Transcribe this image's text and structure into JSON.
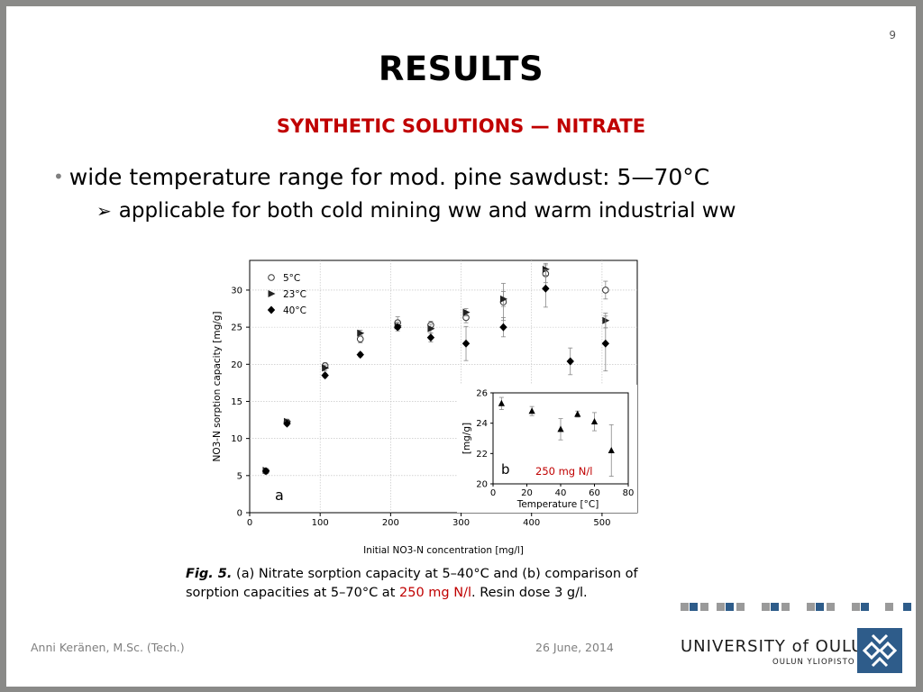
{
  "slide": {
    "page_number": "9",
    "title": "RESULTS",
    "subtitle": "SYNTHETIC SOLUTIONS — NITRATE",
    "bullets": [
      {
        "marker": "•",
        "text": "wide temperature range for mod. pine sawdust: 5—70°C"
      },
      {
        "marker": "➢",
        "text": "applicable for both cold mining ww and warm industrial ww"
      }
    ],
    "caption": {
      "fig_label": "Fig. 5.",
      "text_1": " (a) Nitrate sorption capacity at 5–40°C and (b) comparison of sorption capacities at 5–70°C at ",
      "highlight": "250 mg N/l",
      "text_2": ". Resin dose 3 g/l."
    },
    "footer": {
      "author": "Anni Keränen, M.Sc. (Tech.)",
      "date": "26 June, 2014",
      "university": "UNIVERSITY of OULU",
      "university_sub": "OULUN YLIOPISTO"
    },
    "colors": {
      "accent_red": "#c00000",
      "deco_blue": "#2e5c8a",
      "deco_gray": "#9a9a9a"
    }
  },
  "chart_data": [
    {
      "type": "scatter",
      "panel_label": "a",
      "xlabel": "Initial NO3-N  concentration [mg/l]",
      "ylabel": "NO3-N sorption capacity [mg/g]",
      "xlim": [
        0,
        550
      ],
      "ylim": [
        0,
        34
      ],
      "xticks": [
        0,
        100,
        200,
        300,
        400,
        500
      ],
      "yticks": [
        0,
        5,
        10,
        15,
        20,
        25,
        30
      ],
      "grid": true,
      "legend_position": "top-left",
      "series": [
        {
          "name": "5°C",
          "marker": "circle-open",
          "x": [
            23,
            53,
            107,
            157,
            210,
            257,
            307,
            360,
            420,
            505
          ],
          "y": [
            5.6,
            12.2,
            19.8,
            23.4,
            25.6,
            25.3,
            26.3,
            28.4,
            32.2,
            30.0
          ],
          "err": [
            0.3,
            0.3,
            0.4,
            0.5,
            0.8,
            0.5,
            0.7,
            2.5,
            1.2,
            1.2
          ]
        },
        {
          "name": "23°C",
          "marker": "triangle-right",
          "x": [
            23,
            53,
            107,
            157,
            210,
            257,
            307,
            360,
            420,
            505
          ],
          "y": [
            5.7,
            12.3,
            19.5,
            24.2,
            25.2,
            24.8,
            27.0,
            28.8,
            32.8,
            25.9
          ],
          "err": [
            0.3,
            0.3,
            0.4,
            0.4,
            0.5,
            0.6,
            0.5,
            1.0,
            0.8,
            1.0
          ]
        },
        {
          "name": "40°C",
          "marker": "diamond-filled",
          "x": [
            23,
            53,
            107,
            157,
            210,
            257,
            307,
            360,
            420,
            455,
            505
          ],
          "y": [
            5.6,
            12.0,
            18.5,
            21.3,
            25.0,
            23.6,
            22.8,
            25.0,
            30.2,
            20.4,
            22.8
          ],
          "err": [
            0.2,
            0.3,
            0.3,
            0.3,
            0.5,
            0.6,
            2.3,
            1.3,
            2.5,
            1.8,
            3.7
          ]
        }
      ]
    },
    {
      "type": "scatter",
      "panel_label": "b",
      "annotation": "250 mg N/l",
      "xlabel": "Temperature [°C]",
      "ylabel": "[mg/g]",
      "xlim": [
        0,
        80
      ],
      "ylim": [
        20,
        26
      ],
      "xticks": [
        0,
        20,
        40,
        60,
        80
      ],
      "yticks": [
        20,
        22,
        24,
        26
      ],
      "grid": false,
      "series": [
        {
          "marker": "triangle-filled",
          "x": [
            5,
            23,
            40,
            50,
            60,
            70
          ],
          "y": [
            25.3,
            24.8,
            23.6,
            24.6,
            24.1,
            22.2
          ],
          "err": [
            0.4,
            0.3,
            0.7,
            0.2,
            0.6,
            1.7
          ]
        }
      ]
    }
  ]
}
